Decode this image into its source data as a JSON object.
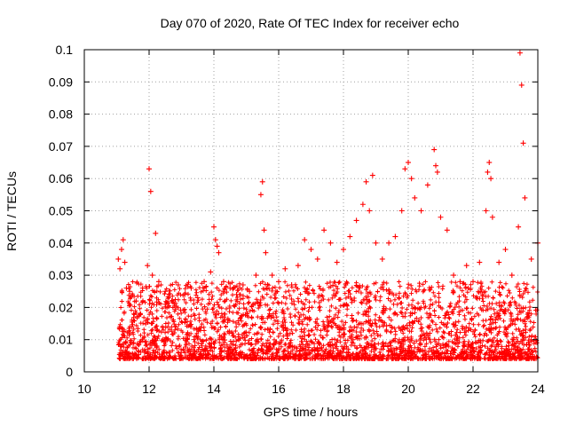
{
  "chart_data": {
    "type": "scatter",
    "title": "Day 070 of 2020, Rate Of TEC Index for receiver echo",
    "xlabel": "GPS time / hours",
    "ylabel": "ROTI / TECUs",
    "xlim": [
      10,
      24
    ],
    "ylim": [
      0,
      0.1
    ],
    "grid": true,
    "marker": "+",
    "color": "#ff0000",
    "x_ticks": [
      10,
      12,
      14,
      16,
      18,
      20,
      22,
      24
    ],
    "x_tick_labels": [
      "10",
      "12",
      "14",
      "16",
      "18",
      "20",
      "22",
      "24"
    ],
    "y_ticks": [
      0,
      0.01,
      0.02,
      0.03,
      0.04,
      0.05,
      0.06,
      0.07,
      0.08,
      0.09,
      0.1
    ],
    "y_tick_labels": [
      "0",
      "0.01",
      "0.02",
      "0.03",
      "0.04",
      "0.05",
      "0.06",
      "0.07",
      "0.08",
      "0.09",
      "0.1"
    ],
    "series": [
      {
        "name": "ROTI",
        "x": [
          11.05,
          11.1,
          11.15,
          11.2,
          11.25,
          11.3,
          11.4,
          11.6,
          11.8,
          11.95,
          12.0,
          12.05,
          12.1,
          12.2,
          12.3,
          12.5,
          12.7,
          12.9,
          13.1,
          13.3,
          13.5,
          13.7,
          13.9,
          14.0,
          14.05,
          14.1,
          14.15,
          14.3,
          14.5,
          14.7,
          14.9,
          15.1,
          15.3,
          15.45,
          15.5,
          15.55,
          15.6,
          15.8,
          16.0,
          16.2,
          16.4,
          16.6,
          16.8,
          17.0,
          17.2,
          17.4,
          17.6,
          17.8,
          18.0,
          18.2,
          18.4,
          18.6,
          18.7,
          18.8,
          18.9,
          19.0,
          19.2,
          19.4,
          19.6,
          19.8,
          19.9,
          20.0,
          20.1,
          20.2,
          20.4,
          20.6,
          20.8,
          20.85,
          20.9,
          21.0,
          21.2,
          21.4,
          21.6,
          21.8,
          22.0,
          22.2,
          22.4,
          22.45,
          22.5,
          22.55,
          22.6,
          22.8,
          23.0,
          23.2,
          23.4,
          23.45,
          23.5,
          23.55,
          23.6,
          23.8,
          24.0
        ],
        "y": [
          0.035,
          0.032,
          0.038,
          0.041,
          0.034,
          0.026,
          0.025,
          0.022,
          0.026,
          0.033,
          0.063,
          0.056,
          0.03,
          0.043,
          0.028,
          0.025,
          0.022,
          0.027,
          0.024,
          0.026,
          0.023,
          0.028,
          0.031,
          0.045,
          0.041,
          0.039,
          0.037,
          0.028,
          0.026,
          0.024,
          0.027,
          0.025,
          0.03,
          0.055,
          0.059,
          0.044,
          0.037,
          0.03,
          0.028,
          0.032,
          0.027,
          0.033,
          0.041,
          0.038,
          0.035,
          0.044,
          0.04,
          0.034,
          0.038,
          0.042,
          0.047,
          0.052,
          0.059,
          0.05,
          0.061,
          0.04,
          0.035,
          0.04,
          0.042,
          0.05,
          0.063,
          0.065,
          0.06,
          0.054,
          0.05,
          0.058,
          0.069,
          0.064,
          0.062,
          0.048,
          0.044,
          0.03,
          0.028,
          0.033,
          0.028,
          0.034,
          0.05,
          0.062,
          0.065,
          0.06,
          0.048,
          0.034,
          0.038,
          0.03,
          0.045,
          0.099,
          0.089,
          0.071,
          0.054,
          0.035,
          0.04
        ]
      }
    ]
  }
}
